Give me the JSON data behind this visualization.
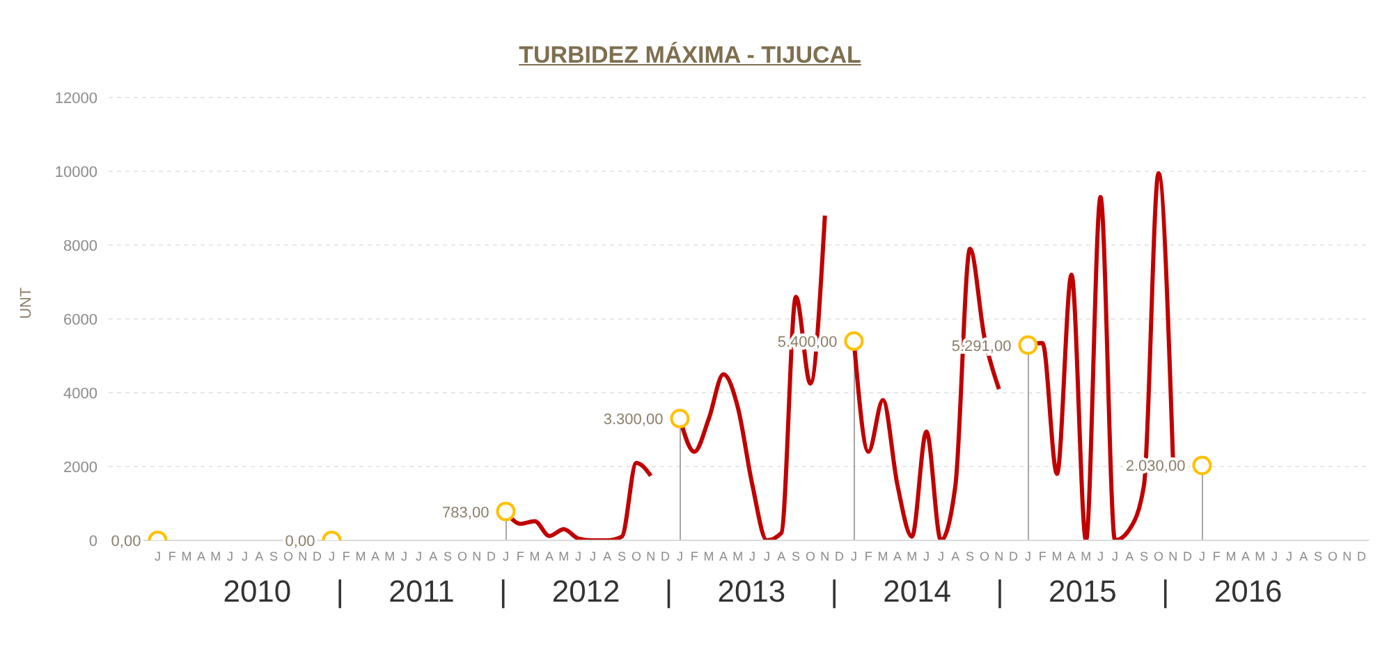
{
  "chart_data": {
    "type": "line",
    "title": "TURBIDEZ MÁXIMA - TIJUCAL",
    "ylabel": "UNT",
    "xlabel": "2010 | 2011 | 2012 | 2013 | 2014 | 2015 | 2016",
    "categories": [
      "J",
      "F",
      "M",
      "A",
      "M",
      "J",
      "J",
      "A",
      "S",
      "O",
      "N",
      "D",
      "J",
      "F",
      "M",
      "A",
      "M",
      "J",
      "J",
      "A",
      "S",
      "O",
      "N",
      "D",
      "J",
      "F",
      "M",
      "A",
      "M",
      "J",
      "J",
      "A",
      "S",
      "O",
      "N",
      "D",
      "J",
      "F",
      "M",
      "A",
      "M",
      "J",
      "J",
      "A",
      "S",
      "O",
      "N",
      "D",
      "J",
      "F",
      "M",
      "A",
      "M",
      "J",
      "J",
      "A",
      "S",
      "O",
      "N",
      "D",
      "J",
      "F",
      "M",
      "A",
      "M",
      "J",
      "J",
      "A",
      "S",
      "O",
      "N",
      "D",
      "J",
      "F",
      "M",
      "A",
      "M",
      "J",
      "J",
      "A",
      "S",
      "O",
      "N",
      "D"
    ],
    "series": [
      {
        "color": "#c00000",
        "values": [
          null,
          null,
          null,
          null,
          null,
          null,
          null,
          null,
          null,
          null,
          null,
          null,
          null,
          null,
          null,
          null,
          null,
          null,
          null,
          null,
          null,
          null,
          null,
          null,
          780,
          450,
          520,
          120,
          300,
          50,
          0,
          0,
          100,
          2100,
          1750,
          null,
          3300,
          2400,
          3300,
          4500,
          3600,
          1500,
          0,
          200,
          6600,
          4250,
          8800,
          null,
          5400,
          2400,
          3800,
          1500,
          100,
          2950,
          0,
          1500,
          7900,
          5500,
          4100,
          null,
          5300,
          5350,
          1800,
          7200,
          0,
          9300,
          0,
          300,
          1500,
          9950,
          2150,
          null,
          null,
          null,
          null,
          null,
          null,
          null,
          null,
          null,
          null,
          null,
          null,
          null
        ]
      },
      {
        "type": "lollipop",
        "color": "#ffc000",
        "values": [
          0,
          null,
          null,
          null,
          null,
          null,
          null,
          null,
          null,
          null,
          null,
          null,
          0,
          null,
          null,
          null,
          null,
          null,
          null,
          null,
          null,
          null,
          null,
          null,
          783,
          null,
          null,
          null,
          null,
          null,
          null,
          null,
          null,
          null,
          null,
          null,
          3300,
          null,
          null,
          null,
          null,
          null,
          null,
          null,
          null,
          null,
          null,
          null,
          5400,
          null,
          null,
          null,
          null,
          null,
          null,
          null,
          null,
          null,
          null,
          null,
          5291,
          null,
          null,
          null,
          null,
          null,
          null,
          null,
          null,
          null,
          null,
          null,
          2030,
          null,
          null,
          null,
          null,
          null,
          null,
          null,
          null,
          null,
          null,
          null
        ],
        "value_labels": [
          "0,00",
          null,
          null,
          null,
          null,
          null,
          null,
          null,
          null,
          null,
          null,
          null,
          "0,00",
          null,
          null,
          null,
          null,
          null,
          null,
          null,
          null,
          null,
          null,
          null,
          "783,00",
          null,
          null,
          null,
          null,
          null,
          null,
          null,
          null,
          null,
          null,
          null,
          "3.300,00",
          null,
          null,
          null,
          null,
          null,
          null,
          null,
          null,
          null,
          null,
          null,
          "5.400,00",
          null,
          null,
          null,
          null,
          null,
          null,
          null,
          null,
          null,
          null,
          null,
          "5.291,00",
          null,
          null,
          null,
          null,
          null,
          null,
          null,
          null,
          null,
          null,
          null,
          "2.030,00",
          null,
          null,
          null,
          null,
          null,
          null,
          null,
          null,
          null,
          null,
          null
        ]
      }
    ],
    "ylim": [
      0,
      12000
    ],
    "yticks": [
      0,
      2000,
      4000,
      6000,
      8000,
      10000,
      12000
    ],
    "grid": "y"
  }
}
